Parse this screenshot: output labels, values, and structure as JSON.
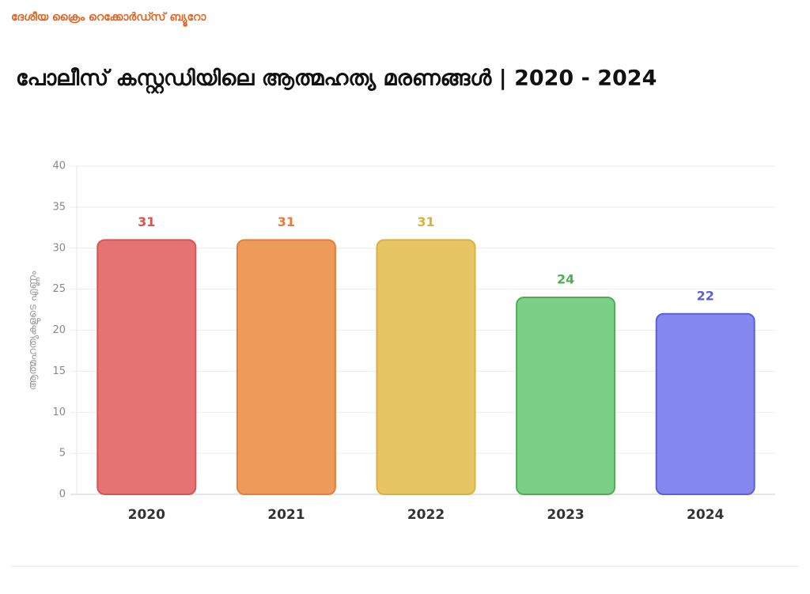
{
  "chart_data": {
    "type": "bar",
    "source": "ദേശീയ ക്രൈം റെക്കോർഡ്സ് ബ്യൂറോ",
    "title": "പോലീസ് കസ്റ്റഡിയിലെ ആത്മഹത്യ മരണങ്ങൾ | 2020 - 2024",
    "y_label": "ആത്മഹത്യകളുടെ എണ്ണം",
    "categories": [
      "2020",
      "2021",
      "2022",
      "2023",
      "2024"
    ],
    "values": [
      31,
      31,
      31,
      24,
      22
    ],
    "colors": [
      "#e57373",
      "#ee9a5a",
      "#e6c565",
      "#7ccf87",
      "#8487ee"
    ],
    "label_colors": [
      "#d9534f",
      "#e67e3a",
      "#d9b23c",
      "#4caf50",
      "#5b5fe0"
    ],
    "ylim": [
      0,
      40
    ],
    "yticks": [
      0,
      5,
      10,
      15,
      20,
      25,
      30,
      35,
      40
    ],
    "grid": true
  }
}
